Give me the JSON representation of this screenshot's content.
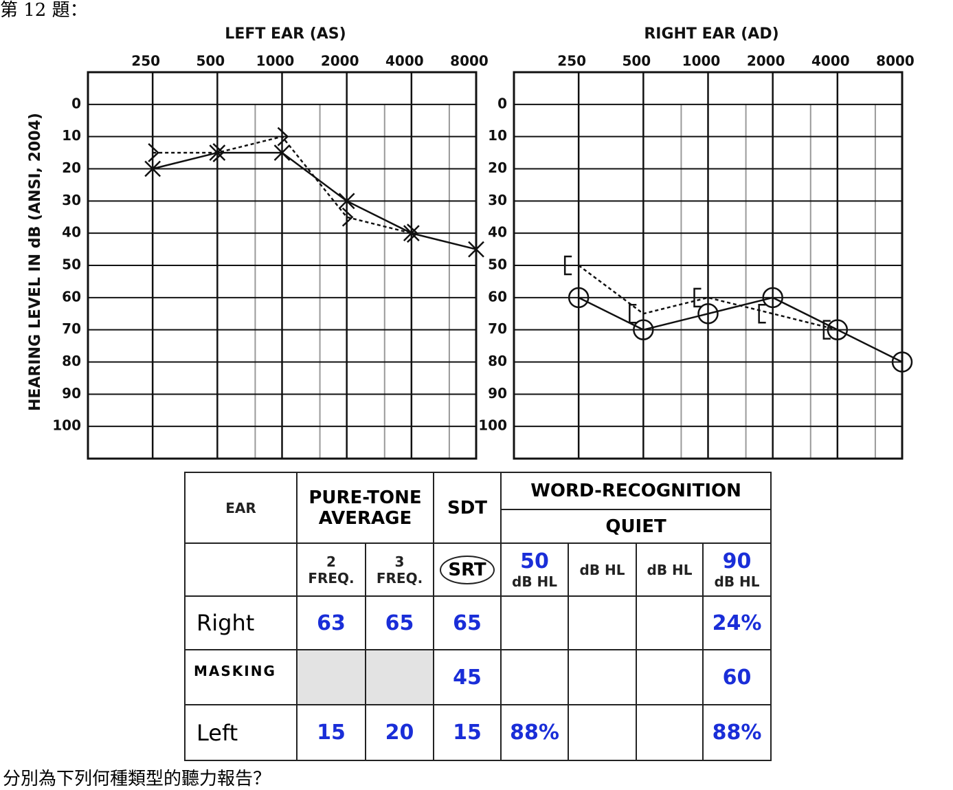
{
  "header": "第 12 題：",
  "footer": "分別為下列何種類型的聽力報告？",
  "chart_data": [
    {
      "type": "line",
      "title": "LEFT EAR (AS)",
      "y_label": "HEARING LEVEL IN dB (ANSI, 2004)",
      "xlim": [
        125,
        8000
      ],
      "x_log": true,
      "xticks": [
        250,
        500,
        1000,
        2000,
        4000,
        8000
      ],
      "minor_grid": [
        750,
        1500,
        3000,
        6000
      ],
      "ylim": [
        -10,
        110
      ],
      "y_inverted": true,
      "yticks": [
        0,
        10,
        20,
        30,
        40,
        50,
        60,
        70,
        80,
        90,
        100
      ],
      "series": [
        {
          "marker": "x",
          "line": "solid",
          "color": "#111",
          "x": [
            250,
            500,
            1000,
            2000,
            4000,
            8000
          ],
          "values": [
            20,
            15,
            15,
            30,
            40,
            45
          ]
        },
        {
          "marker": "chevron",
          "line": "dashed",
          "color": "#111",
          "x": [
            250,
            500,
            1000,
            2000,
            4000
          ],
          "values": [
            15,
            15,
            10,
            35,
            40
          ]
        }
      ]
    },
    {
      "type": "line",
      "title": "RIGHT EAR (AD)",
      "xlim": [
        125,
        8000
      ],
      "x_log": true,
      "xticks": [
        250,
        500,
        1000,
        2000,
        4000,
        8000
      ],
      "minor_grid": [
        750,
        1500,
        3000,
        6000
      ],
      "ylim": [
        -10,
        110
      ],
      "y_inverted": true,
      "yticks": [
        0,
        10,
        20,
        30,
        40,
        50,
        60,
        70,
        80,
        90,
        100
      ],
      "series": [
        {
          "marker": "circle",
          "line": "solid",
          "color": "#111",
          "x": [
            250,
            500,
            1000,
            2000,
            4000,
            8000
          ],
          "values": [
            60,
            70,
            65,
            60,
            70,
            80
          ]
        },
        {
          "marker": "bracket",
          "line": "dashed",
          "color": "#111",
          "x": [
            250,
            500,
            1000,
            2000,
            4000
          ],
          "values": [
            50,
            65,
            60,
            65,
            70
          ]
        }
      ]
    }
  ],
  "table": {
    "ear": "EAR",
    "pta": "PURE-TONE AVERAGE",
    "sdt": "SDT",
    "wr": "WORD-RECOGNITION",
    "quiet": "QUIET",
    "sub": [
      {
        "n": 2,
        "t": "FREQ."
      },
      {
        "n": 3,
        "t": "FREQ."
      },
      {
        "t": "SRT"
      },
      {
        "n": 50,
        "t": "dB HL"
      },
      {
        "t": "dB HL"
      },
      {
        "t": "dB HL"
      },
      {
        "n": 90,
        "t": "dB HL"
      }
    ],
    "rows": [
      [
        "Right",
        63,
        65,
        65,
        null,
        null,
        null,
        "24%"
      ],
      [
        "MASKING",
        null,
        null,
        45,
        null,
        null,
        null,
        60
      ],
      [
        "Left",
        15,
        20,
        15,
        "88%",
        null,
        null,
        "88%"
      ]
    ]
  }
}
